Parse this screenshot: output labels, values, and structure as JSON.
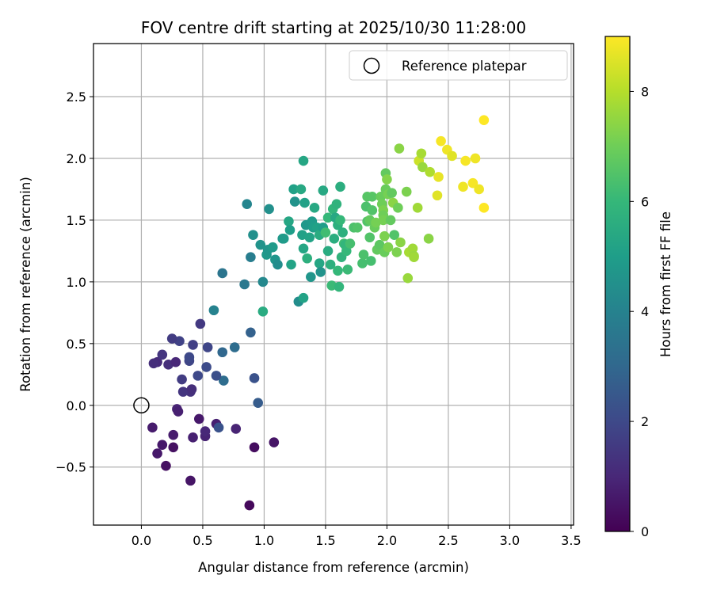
{
  "chart_data": {
    "type": "scatter",
    "title": "FOV centre drift starting at 2025/10/30 11:28:00",
    "xlabel": "Angular distance from reference (arcmin)",
    "ylabel": "Rotation from reference (arcmin)",
    "xlim": [
      -0.39,
      3.52
    ],
    "ylim": [
      -0.97,
      2.93
    ],
    "xticks": [
      0.0,
      0.5,
      1.0,
      1.5,
      2.0,
      2.5,
      3.0,
      3.5
    ],
    "xtick_labels": [
      "0.0",
      "0.5",
      "1.0",
      "1.5",
      "2.0",
      "2.5",
      "3.0",
      "3.5"
    ],
    "yticks": [
      -0.5,
      0.0,
      0.5,
      1.0,
      1.5,
      2.0,
      2.5
    ],
    "ytick_labels": [
      "−0.5",
      "0.0",
      "0.5",
      "1.0",
      "1.5",
      "2.0",
      "2.5"
    ],
    "grid": true,
    "legend": {
      "position": "top-right",
      "entries": [
        "Reference platepar"
      ]
    },
    "reference_point": {
      "x": 0.0,
      "y": 0.0,
      "marker": "open-circle"
    },
    "colorbar": {
      "label": "Hours from first FF file",
      "range": [
        0,
        9
      ],
      "ticks": [
        0,
        2,
        4,
        6,
        8
      ],
      "tick_labels": [
        "0",
        "2",
        "4",
        "6",
        "8"
      ],
      "colormap": [
        "#440154",
        "#482878",
        "#3e4989",
        "#31688e",
        "#26828e",
        "#1f9e89",
        "#35b779",
        "#6ece58",
        "#b5de2b",
        "#fde725"
      ]
    },
    "series": [
      {
        "name": "FOV centre",
        "points": [
          [
            0.88,
            -0.81,
            0.2
          ],
          [
            0.4,
            -0.61,
            0.5
          ],
          [
            0.2,
            -0.49,
            0.4
          ],
          [
            0.13,
            -0.39,
            0.6
          ],
          [
            0.26,
            -0.34,
            0.4
          ],
          [
            0.17,
            -0.32,
            0.6
          ],
          [
            0.92,
            -0.34,
            0.3
          ],
          [
            1.08,
            -0.3,
            0.5
          ],
          [
            0.42,
            -0.26,
            0.8
          ],
          [
            0.52,
            -0.25,
            0.9
          ],
          [
            0.26,
            -0.24,
            0.7
          ],
          [
            0.52,
            -0.21,
            1.0
          ],
          [
            0.77,
            -0.19,
            0.9
          ],
          [
            0.61,
            -0.15,
            0.8
          ],
          [
            0.09,
            -0.18,
            0.7
          ],
          [
            0.47,
            -0.11,
            0.6
          ],
          [
            0.63,
            -0.18,
            2.3
          ],
          [
            0.29,
            -0.03,
            0.9
          ],
          [
            0.3,
            -0.05,
            0.8
          ],
          [
            0.95,
            0.02,
            2.6
          ],
          [
            0.4,
            0.11,
            1.3
          ],
          [
            0.34,
            0.11,
            1.4
          ],
          [
            0.41,
            0.13,
            1.2
          ],
          [
            0.92,
            0.22,
            2.3
          ],
          [
            0.67,
            0.2,
            3.2
          ],
          [
            0.33,
            0.21,
            1.6
          ],
          [
            0.46,
            0.24,
            2.0
          ],
          [
            0.61,
            0.24,
            2.2
          ],
          [
            0.53,
            0.31,
            2.1
          ],
          [
            0.13,
            0.35,
            1.1
          ],
          [
            0.1,
            0.34,
            1.2
          ],
          [
            0.22,
            0.33,
            1.2
          ],
          [
            0.39,
            0.36,
            1.9
          ],
          [
            0.39,
            0.39,
            2.0
          ],
          [
            0.28,
            0.35,
            1.0
          ],
          [
            0.17,
            0.41,
            1.4
          ],
          [
            0.66,
            0.43,
            3.0
          ],
          [
            0.76,
            0.47,
            3.2
          ],
          [
            0.54,
            0.47,
            1.9
          ],
          [
            0.42,
            0.49,
            1.7
          ],
          [
            0.31,
            0.52,
            1.8
          ],
          [
            0.25,
            0.54,
            1.6
          ],
          [
            0.89,
            0.59,
            2.8
          ],
          [
            0.48,
            0.66,
            1.5
          ],
          [
            0.59,
            0.77,
            4.0
          ],
          [
            0.66,
            1.07,
            3.5
          ],
          [
            0.86,
            1.63,
            4.1
          ],
          [
            0.84,
            0.98,
            3.6
          ],
          [
            0.99,
            0.76,
            5.5
          ],
          [
            0.99,
            1.0,
            4.2
          ],
          [
            0.89,
            1.2,
            3.8
          ],
          [
            0.91,
            1.38,
            4.5
          ],
          [
            0.97,
            1.3,
            4.6
          ],
          [
            1.02,
            1.22,
            4.8
          ],
          [
            1.03,
            1.26,
            4.7
          ],
          [
            1.04,
            1.59,
            4.5
          ],
          [
            1.07,
            1.28,
            4.9
          ],
          [
            1.09,
            1.18,
            4.7
          ],
          [
            1.11,
            1.14,
            4.4
          ],
          [
            1.15,
            1.35,
            4.8
          ],
          [
            1.16,
            1.35,
            4.9
          ],
          [
            1.2,
            1.49,
            5.3
          ],
          [
            1.21,
            1.42,
            5.0
          ],
          [
            1.24,
            1.75,
            5.1
          ],
          [
            1.25,
            1.65,
            4.6
          ],
          [
            1.22,
            1.14,
            5.2
          ],
          [
            1.28,
            0.84,
            4.4
          ],
          [
            1.3,
            1.75,
            5.4
          ],
          [
            1.31,
            1.38,
            5.1
          ],
          [
            1.32,
            1.27,
            5.3
          ],
          [
            1.32,
            1.98,
            5.3
          ],
          [
            1.33,
            1.64,
            5.1
          ],
          [
            1.34,
            1.46,
            4.8
          ],
          [
            1.32,
            0.87,
            5.2
          ],
          [
            1.35,
            1.19,
            5.7
          ],
          [
            1.37,
            1.36,
            5.2
          ],
          [
            1.38,
            1.04,
            4.7
          ],
          [
            1.39,
            1.49,
            4.9
          ],
          [
            1.4,
            1.44,
            5.0
          ],
          [
            1.41,
            1.6,
            5.4
          ],
          [
            1.43,
            1.44,
            5.1
          ],
          [
            1.45,
            1.38,
            5.5
          ],
          [
            1.45,
            1.15,
            5.3
          ],
          [
            1.46,
            1.08,
            4.6
          ],
          [
            1.48,
            1.74,
            5.4
          ],
          [
            1.48,
            1.44,
            5.0
          ],
          [
            1.5,
            1.4,
            6.2
          ],
          [
            1.52,
            1.25,
            5.5
          ],
          [
            1.52,
            1.52,
            6.0
          ],
          [
            1.54,
            1.14,
            5.7
          ],
          [
            1.55,
            0.97,
            6.1
          ],
          [
            1.56,
            1.59,
            5.9
          ],
          [
            1.57,
            1.35,
            5.6
          ],
          [
            1.58,
            1.52,
            5.4
          ],
          [
            1.59,
            1.63,
            5.8
          ],
          [
            1.6,
            1.09,
            6.0
          ],
          [
            1.6,
            1.46,
            5.7
          ],
          [
            1.61,
            0.96,
            5.9
          ],
          [
            1.62,
            1.77,
            5.6
          ],
          [
            1.62,
            1.5,
            6.0
          ],
          [
            1.63,
            1.2,
            5.8
          ],
          [
            1.64,
            1.4,
            5.7
          ],
          [
            1.65,
            1.31,
            6.2
          ],
          [
            1.66,
            1.3,
            5.9
          ],
          [
            1.67,
            1.25,
            6.0
          ],
          [
            1.68,
            1.1,
            6.1
          ],
          [
            1.7,
            1.31,
            6.3
          ],
          [
            1.73,
            1.44,
            6.4
          ],
          [
            1.76,
            1.44,
            6.5
          ],
          [
            1.8,
            1.15,
            6.3
          ],
          [
            1.81,
            1.22,
            6.4
          ],
          [
            1.83,
            1.61,
            6.4
          ],
          [
            1.84,
            1.69,
            6.6
          ],
          [
            1.84,
            1.49,
            6.5
          ],
          [
            1.86,
            1.36,
            6.5
          ],
          [
            1.86,
            1.5,
            6.8
          ],
          [
            1.87,
            1.17,
            6.3
          ],
          [
            1.88,
            1.58,
            6.5
          ],
          [
            1.88,
            1.69,
            6.6
          ],
          [
            1.9,
            1.44,
            6.9
          ],
          [
            1.91,
            1.48,
            7.1
          ],
          [
            1.92,
            1.26,
            6.8
          ],
          [
            1.94,
            1.3,
            6.7
          ],
          [
            1.95,
            1.69,
            6.9
          ],
          [
            1.96,
            1.63,
            7.0
          ],
          [
            1.97,
            1.58,
            7.2
          ],
          [
            1.97,
            1.54,
            7.0
          ],
          [
            1.97,
            1.5,
            7.1
          ],
          [
            1.98,
            1.37,
            7.2
          ],
          [
            1.98,
            1.24,
            6.9
          ],
          [
            1.99,
            1.88,
            6.8
          ],
          [
            1.99,
            1.75,
            6.9
          ],
          [
            2.0,
            1.83,
            7.3
          ],
          [
            2.01,
            1.71,
            7.1
          ],
          [
            2.01,
            1.28,
            7.2
          ],
          [
            2.03,
            1.5,
            6.8
          ],
          [
            2.04,
            1.72,
            6.8
          ],
          [
            2.05,
            1.64,
            7.4
          ],
          [
            2.06,
            1.38,
            6.5
          ],
          [
            2.08,
            1.24,
            7.2
          ],
          [
            2.09,
            1.6,
            7.0
          ],
          [
            2.1,
            2.08,
            7.4
          ],
          [
            2.11,
            1.32,
            7.4
          ],
          [
            2.16,
            1.73,
            7.2
          ],
          [
            2.17,
            1.03,
            7.6
          ],
          [
            2.18,
            1.24,
            7.8
          ],
          [
            2.21,
            1.27,
            7.7
          ],
          [
            2.22,
            1.21,
            7.6
          ],
          [
            2.22,
            1.2,
            7.7
          ],
          [
            2.25,
            1.6,
            7.7
          ],
          [
            2.26,
            1.98,
            8.3
          ],
          [
            2.28,
            2.04,
            7.8
          ],
          [
            2.29,
            1.93,
            7.6
          ],
          [
            2.34,
            1.35,
            7.4
          ],
          [
            2.35,
            1.89,
            7.9
          ],
          [
            2.41,
            1.7,
            8.6
          ],
          [
            2.42,
            1.85,
            8.7
          ],
          [
            2.44,
            2.14,
            8.9
          ],
          [
            2.49,
            2.07,
            8.8
          ],
          [
            2.53,
            2.02,
            8.6
          ],
          [
            2.62,
            1.77,
            8.8
          ],
          [
            2.64,
            1.98,
            8.9
          ],
          [
            2.7,
            1.8,
            8.9
          ],
          [
            2.72,
            2.0,
            8.8
          ],
          [
            2.75,
            1.75,
            8.8
          ],
          [
            2.79,
            1.6,
            9.0
          ],
          [
            2.79,
            2.31,
            9.0
          ]
        ]
      }
    ]
  }
}
